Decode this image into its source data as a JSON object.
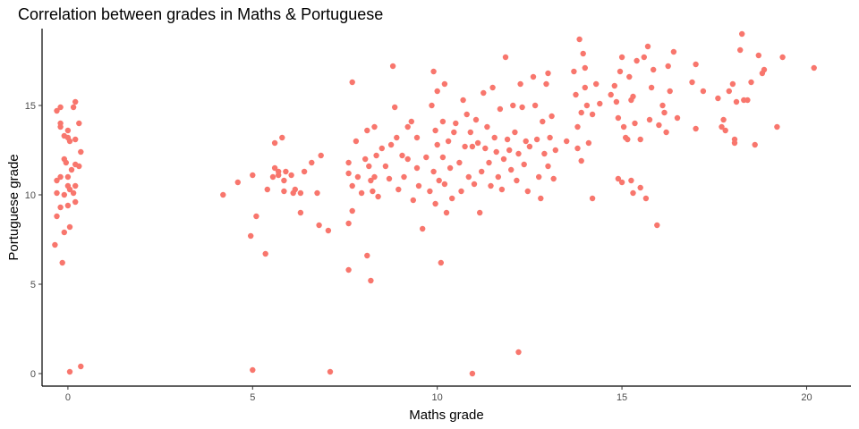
{
  "chart_data": {
    "type": "scatter",
    "title": "Correlation between grades in Maths & Portuguese",
    "xlabel": "Maths grade",
    "ylabel": "Portuguese grade",
    "xlim": [
      -0.7,
      21.2
    ],
    "ylim": [
      -0.7,
      19.3
    ],
    "xticks": [
      0,
      5,
      10,
      15,
      20
    ],
    "yticks": [
      0,
      5,
      10,
      15
    ],
    "grid": false,
    "point_color": "#F8766D",
    "points": [
      [
        -0.3,
        14.7
      ],
      [
        -0.2,
        14.9
      ],
      [
        -0.2,
        14.0
      ],
      [
        -0.2,
        13.8
      ],
      [
        -0.1,
        13.3
      ],
      [
        0.0,
        13.6
      ],
      [
        0.0,
        13.2
      ],
      [
        0.05,
        13.0
      ],
      [
        0.2,
        13.1
      ],
      [
        0.2,
        15.2
      ],
      [
        0.15,
        14.9
      ],
      [
        0.3,
        14.0
      ],
      [
        0.35,
        12.4
      ],
      [
        -0.1,
        12.0
      ],
      [
        -0.05,
        11.8
      ],
      [
        0.1,
        11.4
      ],
      [
        0.2,
        11.7
      ],
      [
        0.3,
        11.6
      ],
      [
        -0.2,
        11.0
      ],
      [
        0.0,
        11.0
      ],
      [
        -0.3,
        10.8
      ],
      [
        -0.3,
        10.1
      ],
      [
        0.0,
        10.5
      ],
      [
        0.05,
        10.3
      ],
      [
        0.15,
        10.1
      ],
      [
        0.2,
        10.5
      ],
      [
        -0.1,
        10.0
      ],
      [
        -0.2,
        9.3
      ],
      [
        0.0,
        9.4
      ],
      [
        0.2,
        9.6
      ],
      [
        -0.3,
        8.8
      ],
      [
        -0.1,
        7.9
      ],
      [
        0.05,
        8.2
      ],
      [
        -0.35,
        7.2
      ],
      [
        -0.15,
        6.2
      ],
      [
        0.05,
        0.1
      ],
      [
        0.35,
        0.4
      ],
      [
        4.2,
        10.0
      ],
      [
        4.6,
        10.7
      ],
      [
        5.0,
        11.1
      ],
      [
        4.95,
        7.7
      ],
      [
        5.1,
        8.8
      ],
      [
        5.35,
        6.7
      ],
      [
        5.0,
        0.2
      ],
      [
        5.6,
        12.9
      ],
      [
        5.8,
        13.2
      ],
      [
        5.6,
        11.5
      ],
      [
        5.7,
        11.1
      ],
      [
        5.85,
        10.8
      ],
      [
        5.9,
        11.3
      ],
      [
        6.05,
        11.1
      ],
      [
        6.15,
        10.3
      ],
      [
        5.85,
        10.2
      ],
      [
        6.1,
        10.1
      ],
      [
        5.55,
        11.0
      ],
      [
        6.3,
        10.1
      ],
      [
        6.3,
        9.0
      ],
      [
        6.4,
        11.3
      ],
      [
        6.6,
        11.8
      ],
      [
        6.75,
        10.1
      ],
      [
        6.85,
        12.2
      ],
      [
        6.8,
        8.3
      ],
      [
        7.05,
        8.0
      ],
      [
        7.1,
        0.1
      ],
      [
        5.4,
        10.3
      ],
      [
        5.7,
        11.3
      ],
      [
        7.6,
        11.8
      ],
      [
        7.6,
        11.2
      ],
      [
        7.7,
        10.5
      ],
      [
        7.7,
        9.1
      ],
      [
        7.6,
        8.4
      ],
      [
        7.6,
        5.8
      ],
      [
        7.8,
        13.0
      ],
      [
        7.85,
        11.0
      ],
      [
        7.95,
        10.1
      ],
      [
        8.05,
        12.0
      ],
      [
        8.1,
        13.6
      ],
      [
        8.15,
        11.6
      ],
      [
        8.2,
        10.8
      ],
      [
        8.25,
        10.2
      ],
      [
        8.3,
        13.8
      ],
      [
        8.35,
        12.2
      ],
      [
        8.3,
        11.0
      ],
      [
        8.4,
        9.9
      ],
      [
        8.1,
        6.6
      ],
      [
        8.2,
        5.2
      ],
      [
        7.7,
        16.3
      ],
      [
        8.5,
        12.6
      ],
      [
        8.6,
        11.6
      ],
      [
        8.7,
        10.9
      ],
      [
        8.75,
        12.8
      ],
      [
        8.85,
        14.9
      ],
      [
        8.8,
        17.2
      ],
      [
        8.9,
        13.2
      ],
      [
        8.95,
        10.3
      ],
      [
        9.05,
        12.2
      ],
      [
        9.1,
        11.0
      ],
      [
        9.2,
        12.0
      ],
      [
        9.2,
        13.8
      ],
      [
        9.3,
        14.1
      ],
      [
        9.35,
        9.7
      ],
      [
        9.45,
        13.2
      ],
      [
        9.45,
        11.5
      ],
      [
        9.5,
        10.5
      ],
      [
        9.6,
        8.1
      ],
      [
        9.7,
        12.1
      ],
      [
        9.8,
        10.2
      ],
      [
        9.85,
        15.0
      ],
      [
        9.9,
        16.9
      ],
      [
        9.95,
        13.6
      ],
      [
        9.9,
        11.3
      ],
      [
        9.95,
        9.5
      ],
      [
        10.0,
        12.8
      ],
      [
        10.05,
        10.8
      ],
      [
        10.15,
        14.1
      ],
      [
        10.15,
        12.1
      ],
      [
        10.2,
        10.6
      ],
      [
        10.2,
        16.2
      ],
      [
        10.3,
        13.0
      ],
      [
        10.35,
        11.5
      ],
      [
        10.4,
        9.8
      ],
      [
        10.0,
        15.8
      ],
      [
        10.1,
        6.2
      ],
      [
        10.25,
        9.0
      ],
      [
        10.45,
        13.5
      ],
      [
        10.5,
        14.0
      ],
      [
        10.6,
        11.8
      ],
      [
        10.65,
        10.2
      ],
      [
        10.7,
        15.3
      ],
      [
        10.75,
        12.7
      ],
      [
        10.8,
        14.5
      ],
      [
        10.85,
        11.0
      ],
      [
        10.9,
        13.5
      ],
      [
        10.95,
        12.7
      ],
      [
        11.0,
        10.6
      ],
      [
        11.05,
        14.2
      ],
      [
        11.1,
        12.9
      ],
      [
        11.15,
        9.0
      ],
      [
        11.2,
        11.3
      ],
      [
        11.25,
        15.7
      ],
      [
        11.3,
        12.6
      ],
      [
        11.35,
        13.8
      ],
      [
        11.4,
        11.8
      ],
      [
        11.45,
        10.5
      ],
      [
        11.5,
        16.0
      ],
      [
        11.55,
        13.2
      ],
      [
        11.6,
        12.4
      ],
      [
        11.65,
        11.0
      ],
      [
        11.7,
        14.8
      ],
      [
        11.75,
        10.3
      ],
      [
        11.8,
        12.0
      ],
      [
        11.85,
        17.7
      ],
      [
        11.9,
        13.1
      ],
      [
        11.95,
        12.5
      ],
      [
        12.0,
        11.4
      ],
      [
        12.05,
        15.0
      ],
      [
        12.1,
        13.5
      ],
      [
        12.15,
        10.8
      ],
      [
        12.2,
        12.3
      ],
      [
        12.25,
        16.2
      ],
      [
        12.3,
        14.9
      ],
      [
        12.35,
        11.7
      ],
      [
        12.4,
        13.0
      ],
      [
        12.45,
        10.2
      ],
      [
        12.5,
        12.7
      ],
      [
        12.6,
        16.6
      ],
      [
        12.65,
        15.0
      ],
      [
        12.7,
        13.1
      ],
      [
        12.75,
        11.0
      ],
      [
        12.8,
        9.8
      ],
      [
        12.85,
        14.1
      ],
      [
        12.9,
        12.3
      ],
      [
        12.95,
        16.2
      ],
      [
        13.0,
        11.6
      ],
      [
        13.0,
        16.8
      ],
      [
        13.05,
        13.2
      ],
      [
        13.1,
        14.4
      ],
      [
        13.15,
        10.9
      ],
      [
        13.2,
        12.5
      ],
      [
        12.2,
        1.2
      ],
      [
        10.95,
        0.0
      ],
      [
        13.5,
        13.0
      ],
      [
        13.7,
        16.9
      ],
      [
        13.75,
        15.6
      ],
      [
        13.8,
        13.8
      ],
      [
        13.9,
        14.6
      ],
      [
        14.0,
        17.1
      ],
      [
        14.05,
        15.0
      ],
      [
        14.0,
        16.0
      ],
      [
        14.1,
        12.9
      ],
      [
        13.85,
        18.7
      ],
      [
        13.95,
        17.9
      ],
      [
        14.2,
        14.5
      ],
      [
        14.3,
        16.2
      ],
      [
        14.4,
        15.1
      ],
      [
        14.2,
        9.8
      ],
      [
        13.9,
        11.9
      ],
      [
        13.8,
        12.6
      ],
      [
        14.7,
        15.6
      ],
      [
        14.8,
        16.1
      ],
      [
        14.9,
        14.3
      ],
      [
        14.95,
        16.9
      ],
      [
        15.0,
        17.7
      ],
      [
        14.85,
        15.2
      ],
      [
        15.05,
        13.8
      ],
      [
        15.1,
        13.2
      ],
      [
        15.15,
        13.1
      ],
      [
        15.2,
        16.6
      ],
      [
        15.25,
        15.3
      ],
      [
        15.3,
        15.5
      ],
      [
        15.35,
        14.0
      ],
      [
        15.4,
        17.5
      ],
      [
        15.5,
        13.1
      ],
      [
        15.6,
        17.7
      ],
      [
        15.7,
        18.3
      ],
      [
        15.75,
        14.2
      ],
      [
        15.8,
        16.0
      ],
      [
        15.85,
        17.0
      ],
      [
        16.0,
        13.9
      ],
      [
        16.1,
        15.0
      ],
      [
        16.15,
        14.6
      ],
      [
        16.2,
        13.5
      ],
      [
        16.25,
        17.2
      ],
      [
        16.3,
        15.8
      ],
      [
        16.4,
        18.0
      ],
      [
        16.5,
        14.3
      ],
      [
        15.65,
        9.8
      ],
      [
        15.95,
        8.3
      ],
      [
        14.9,
        10.9
      ],
      [
        15.0,
        10.7
      ],
      [
        15.25,
        10.8
      ],
      [
        15.3,
        10.1
      ],
      [
        15.5,
        10.4
      ],
      [
        16.9,
        16.3
      ],
      [
        17.0,
        13.7
      ],
      [
        17.0,
        17.3
      ],
      [
        17.2,
        15.8
      ],
      [
        17.6,
        15.4
      ],
      [
        17.7,
        13.8
      ],
      [
        17.8,
        13.6
      ],
      [
        17.9,
        15.8
      ],
      [
        18.0,
        16.2
      ],
      [
        18.05,
        12.9
      ],
      [
        18.1,
        15.2
      ],
      [
        18.2,
        18.1
      ],
      [
        18.25,
        19.0
      ],
      [
        18.3,
        15.3
      ],
      [
        18.4,
        15.3
      ],
      [
        18.5,
        16.3
      ],
      [
        18.6,
        12.8
      ],
      [
        18.7,
        17.8
      ],
      [
        18.8,
        16.8
      ],
      [
        18.85,
        17.0
      ],
      [
        19.2,
        13.8
      ],
      [
        19.35,
        17.7
      ],
      [
        20.2,
        17.1
      ],
      [
        17.75,
        14.2
      ],
      [
        18.05,
        13.1
      ]
    ]
  }
}
